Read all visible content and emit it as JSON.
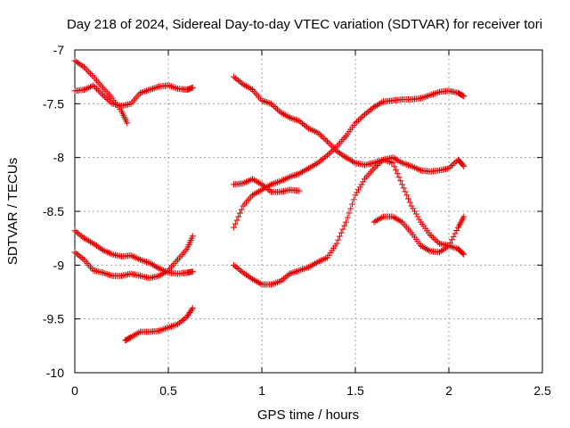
{
  "chart_data": {
    "type": "scatter",
    "title": "Day 218 of 2024, Sidereal Day-to-day VTEC variation (SDTVAR) for receiver tori",
    "xlabel": "GPS time / hours",
    "ylabel": "SDTVAR / TECUs",
    "xlim": [
      0,
      2.5
    ],
    "ylim": [
      -10,
      -7
    ],
    "xticks": [
      0,
      0.5,
      1,
      1.5,
      2,
      2.5
    ],
    "xtick_labels": [
      "0",
      "0.5",
      "1",
      "1.5",
      "2",
      "2.5"
    ],
    "yticks": [
      -10,
      -9.5,
      -9,
      -8.5,
      -8,
      -7.5,
      -7
    ],
    "ytick_labels": [
      "-10",
      "-9.5",
      "-9",
      "-8.5",
      "-8",
      "-7.5",
      "-7"
    ],
    "grid": true,
    "marker": "plus",
    "color": "#e00000",
    "series": [
      {
        "points": [
          [
            0.0,
            -7.38
          ],
          [
            0.05,
            -7.37
          ],
          [
            0.1,
            -7.33
          ],
          [
            0.15,
            -7.42
          ],
          [
            0.2,
            -7.5
          ],
          [
            0.25,
            -7.52
          ],
          [
            0.3,
            -7.5
          ],
          [
            0.35,
            -7.4
          ],
          [
            0.4,
            -7.37
          ],
          [
            0.45,
            -7.34
          ],
          [
            0.5,
            -7.33
          ],
          [
            0.55,
            -7.36
          ],
          [
            0.6,
            -7.37
          ],
          [
            0.63,
            -7.35
          ]
        ]
      },
      {
        "points": [
          [
            0.0,
            -7.1
          ],
          [
            0.05,
            -7.16
          ],
          [
            0.1,
            -7.25
          ],
          [
            0.15,
            -7.35
          ],
          [
            0.2,
            -7.45
          ],
          [
            0.25,
            -7.57
          ],
          [
            0.28,
            -7.68
          ]
        ]
      },
      {
        "points": [
          [
            0.0,
            -8.68
          ],
          [
            0.05,
            -8.75
          ],
          [
            0.1,
            -8.8
          ],
          [
            0.15,
            -8.86
          ],
          [
            0.2,
            -8.9
          ],
          [
            0.25,
            -8.92
          ],
          [
            0.3,
            -8.91
          ],
          [
            0.35,
            -8.95
          ],
          [
            0.4,
            -8.98
          ],
          [
            0.45,
            -9.03
          ],
          [
            0.5,
            -9.07
          ],
          [
            0.55,
            -9.08
          ],
          [
            0.6,
            -9.07
          ],
          [
            0.63,
            -9.06
          ]
        ]
      },
      {
        "points": [
          [
            0.0,
            -8.88
          ],
          [
            0.05,
            -8.95
          ],
          [
            0.1,
            -9.05
          ],
          [
            0.15,
            -9.07
          ],
          [
            0.2,
            -9.1
          ],
          [
            0.25,
            -9.1
          ],
          [
            0.3,
            -9.08
          ],
          [
            0.35,
            -9.1
          ],
          [
            0.4,
            -9.12
          ],
          [
            0.45,
            -9.1
          ],
          [
            0.5,
            -9.05
          ],
          [
            0.55,
            -8.95
          ],
          [
            0.6,
            -8.85
          ],
          [
            0.63,
            -8.73
          ]
        ]
      },
      {
        "points": [
          [
            0.27,
            -9.7
          ],
          [
            0.3,
            -9.67
          ],
          [
            0.35,
            -9.62
          ],
          [
            0.4,
            -9.62
          ],
          [
            0.45,
            -9.61
          ],
          [
            0.5,
            -9.58
          ],
          [
            0.55,
            -9.55
          ],
          [
            0.6,
            -9.48
          ],
          [
            0.63,
            -9.4
          ]
        ]
      },
      {
        "points": [
          [
            0.85,
            -7.25
          ],
          [
            0.9,
            -7.32
          ],
          [
            0.95,
            -7.37
          ],
          [
            1.0,
            -7.47
          ],
          [
            1.05,
            -7.5
          ],
          [
            1.1,
            -7.58
          ],
          [
            1.15,
            -7.63
          ],
          [
            1.2,
            -7.66
          ],
          [
            1.25,
            -7.73
          ],
          [
            1.3,
            -7.77
          ],
          [
            1.35,
            -7.85
          ],
          [
            1.4,
            -7.94
          ],
          [
            1.45,
            -8.0
          ],
          [
            1.5,
            -8.05
          ],
          [
            1.55,
            -8.07
          ],
          [
            1.6,
            -8.05
          ],
          [
            1.65,
            -8.02
          ],
          [
            1.7,
            -8.0
          ],
          [
            1.75,
            -8.05
          ],
          [
            1.8,
            -8.08
          ],
          [
            1.85,
            -8.12
          ],
          [
            1.9,
            -8.13
          ],
          [
            1.95,
            -8.12
          ],
          [
            2.0,
            -8.1
          ],
          [
            2.05,
            -8.02
          ],
          [
            2.08,
            -8.08
          ]
        ]
      },
      {
        "points": [
          [
            0.85,
            -9.0
          ],
          [
            0.9,
            -9.07
          ],
          [
            0.95,
            -9.13
          ],
          [
            1.0,
            -9.18
          ],
          [
            1.05,
            -9.18
          ],
          [
            1.1,
            -9.15
          ],
          [
            1.15,
            -9.08
          ],
          [
            1.2,
            -9.05
          ],
          [
            1.25,
            -9.02
          ],
          [
            1.3,
            -8.97
          ],
          [
            1.35,
            -8.93
          ],
          [
            1.4,
            -8.8
          ],
          [
            1.45,
            -8.6
          ],
          [
            1.5,
            -8.35
          ],
          [
            1.55,
            -8.2
          ],
          [
            1.6,
            -8.1
          ],
          [
            1.65,
            -8.02
          ],
          [
            1.7,
            -8.05
          ],
          [
            1.75,
            -8.25
          ],
          [
            1.8,
            -8.45
          ],
          [
            1.85,
            -8.6
          ],
          [
            1.9,
            -8.72
          ],
          [
            1.95,
            -8.8
          ],
          [
            2.0,
            -8.82
          ],
          [
            2.05,
            -8.85
          ],
          [
            2.08,
            -8.9
          ]
        ]
      },
      {
        "points": [
          [
            0.85,
            -8.65
          ],
          [
            0.9,
            -8.45
          ],
          [
            0.95,
            -8.35
          ],
          [
            1.0,
            -8.3
          ],
          [
            1.05,
            -8.25
          ],
          [
            1.1,
            -8.22
          ],
          [
            1.15,
            -8.18
          ],
          [
            1.2,
            -8.15
          ],
          [
            1.25,
            -8.1
          ],
          [
            1.3,
            -8.05
          ],
          [
            1.35,
            -7.98
          ],
          [
            1.4,
            -7.9
          ],
          [
            1.45,
            -7.8
          ],
          [
            1.5,
            -7.68
          ],
          [
            1.55,
            -7.6
          ],
          [
            1.6,
            -7.53
          ],
          [
            1.65,
            -7.48
          ],
          [
            1.7,
            -7.47
          ],
          [
            1.75,
            -7.46
          ],
          [
            1.8,
            -7.46
          ],
          [
            1.85,
            -7.45
          ],
          [
            1.9,
            -7.42
          ],
          [
            1.95,
            -7.39
          ],
          [
            2.0,
            -7.38
          ],
          [
            2.05,
            -7.4
          ],
          [
            2.08,
            -7.43
          ]
        ]
      },
      {
        "points": [
          [
            0.85,
            -8.25
          ],
          [
            0.9,
            -8.24
          ],
          [
            0.95,
            -8.2
          ],
          [
            1.0,
            -8.25
          ],
          [
            1.05,
            -8.32
          ],
          [
            1.1,
            -8.32
          ],
          [
            1.15,
            -8.3
          ],
          [
            1.2,
            -8.31
          ]
        ]
      },
      {
        "points": [
          [
            1.6,
            -8.6
          ],
          [
            1.65,
            -8.55
          ],
          [
            1.7,
            -8.55
          ],
          [
            1.75,
            -8.6
          ],
          [
            1.8,
            -8.7
          ],
          [
            1.85,
            -8.82
          ],
          [
            1.9,
            -8.87
          ],
          [
            1.95,
            -8.88
          ],
          [
            2.0,
            -8.82
          ],
          [
            2.05,
            -8.65
          ],
          [
            2.08,
            -8.55
          ]
        ]
      }
    ]
  }
}
